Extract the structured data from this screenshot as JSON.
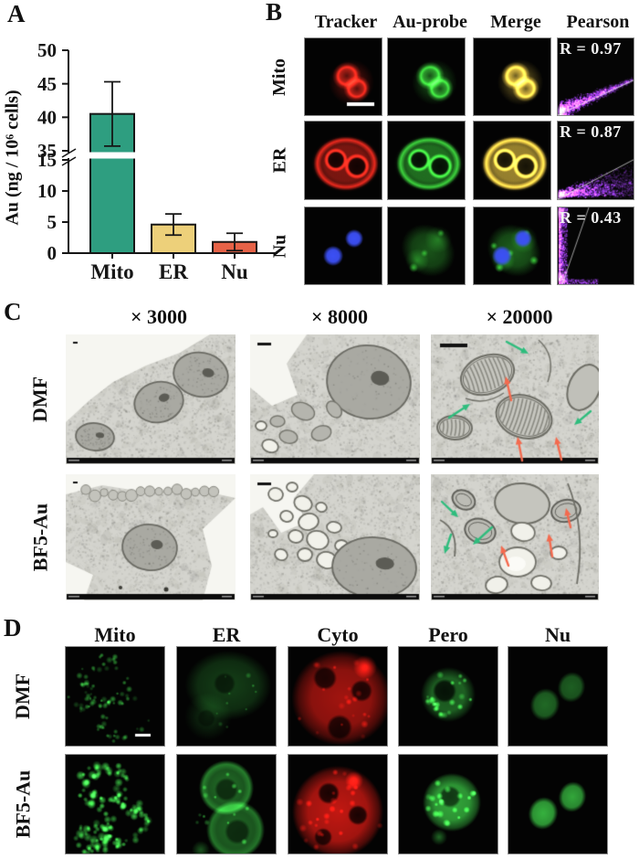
{
  "panel_a": {
    "label": "A"
  },
  "chart_data": {
    "type": "bar",
    "title": "",
    "xlabel": "",
    "ylabel": "Au (ng / 10⁶ cells)",
    "categories": [
      "Mito",
      "ER",
      "Nu"
    ],
    "values": [
      40.5,
      4.6,
      1.8
    ],
    "errors": [
      4.8,
      1.7,
      1.4
    ],
    "bar_colors": [
      "#2e9e80",
      "#edd07a",
      "#e66247"
    ],
    "axis": {
      "lower_ticks": [
        0,
        5,
        10,
        15
      ],
      "upper_ticks": [
        35,
        40,
        45,
        50
      ],
      "break_between": [
        15,
        35
      ]
    },
    "grid": false,
    "legend": null
  },
  "panel_b": {
    "label": "B",
    "col_headers": [
      "Tracker",
      "Au-probe",
      "Merge",
      "Pearson"
    ],
    "row_labels": [
      "Mito",
      "ER",
      "Nu"
    ],
    "pearson_values": [
      "R = 0.97",
      "R = 0.87",
      "R = 0.43"
    ]
  },
  "panel_c": {
    "label": "C",
    "col_headers": [
      "× 3000",
      "× 8000",
      "× 20000"
    ],
    "row_labels": [
      "DMF",
      "BF5-Au"
    ]
  },
  "panel_d": {
    "label": "D",
    "col_headers": [
      "Mito",
      "ER",
      "Cyto",
      "Pero",
      "Nu"
    ],
    "row_labels": [
      "DMF",
      "BF5-Au"
    ]
  },
  "colors": {
    "bar_mito": "#2e9e80",
    "bar_er": "#edd07a",
    "bar_nu": "#e66247",
    "arrow_green": "#2ebd7d",
    "arrow_red": "#f46a4e",
    "pearson_text": "#f2f2f2"
  }
}
